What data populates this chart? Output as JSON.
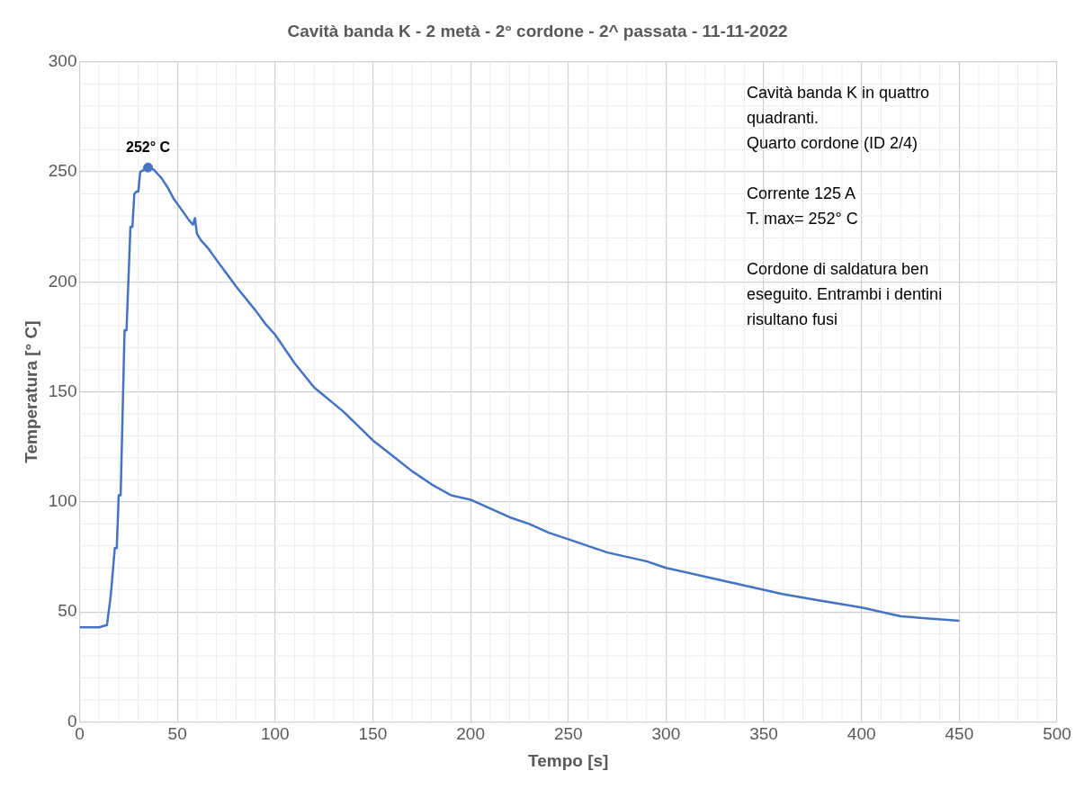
{
  "chart_data": {
    "type": "line",
    "title": "Cavità banda K - 2 metà - 2° cordone - 2^ passata - 11-11-2022",
    "xlabel": "Tempo [s]",
    "ylabel": "Temperatura [° C]",
    "series": [
      {
        "color": "#4472c4",
        "x": [
          0,
          10,
          14,
          16,
          18,
          19,
          20,
          21,
          23,
          24,
          26,
          27,
          28,
          29,
          30,
          31,
          33,
          35,
          38,
          40,
          42,
          45,
          48,
          52,
          56,
          58,
          59,
          60,
          62,
          66,
          70,
          75,
          80,
          90,
          95,
          100,
          110,
          120,
          135,
          150,
          160,
          170,
          180,
          190,
          200,
          210,
          220,
          230,
          240,
          250,
          270,
          290,
          300,
          320,
          340,
          360,
          380,
          400,
          420,
          450
        ],
        "values": [
          43,
          43,
          44,
          58,
          79,
          79,
          103,
          103,
          178,
          178,
          225,
          225,
          240,
          241,
          241,
          250,
          251,
          252,
          251,
          249,
          247,
          243,
          238,
          233,
          228,
          226,
          229,
          222,
          219,
          215,
          210,
          204,
          198,
          187,
          181,
          176,
          163,
          152,
          141,
          128,
          121,
          114,
          108,
          103,
          101,
          97,
          93,
          90,
          86,
          83,
          77,
          73,
          70,
          66,
          62,
          58,
          55,
          52,
          48,
          46
        ]
      },
      {
        "type": "scatter",
        "marker": "circle",
        "color": "#4472c4",
        "x": [
          35
        ],
        "values": [
          252
        ]
      }
    ],
    "xlim": [
      0,
      500
    ],
    "xticks": [
      0,
      50,
      100,
      150,
      200,
      250,
      300,
      350,
      400,
      450,
      500
    ],
    "ylim": [
      0,
      300
    ],
    "yticks": [
      0,
      50,
      100,
      150,
      200,
      250,
      300
    ],
    "grid": true,
    "legend": false,
    "line_style": "solid",
    "annotations": [
      {
        "text": "252° C",
        "x": 35,
        "y": 252
      },
      "Cavità banda K in quattro\nquadranti.\nQuarto cordone (ID 2/4)",
      "Corrente 125 A\nT. max= 252° C",
      "Cordone di saldatura ben\neseguito. Entrambi i dentini\nrisultano fusi"
    ]
  }
}
